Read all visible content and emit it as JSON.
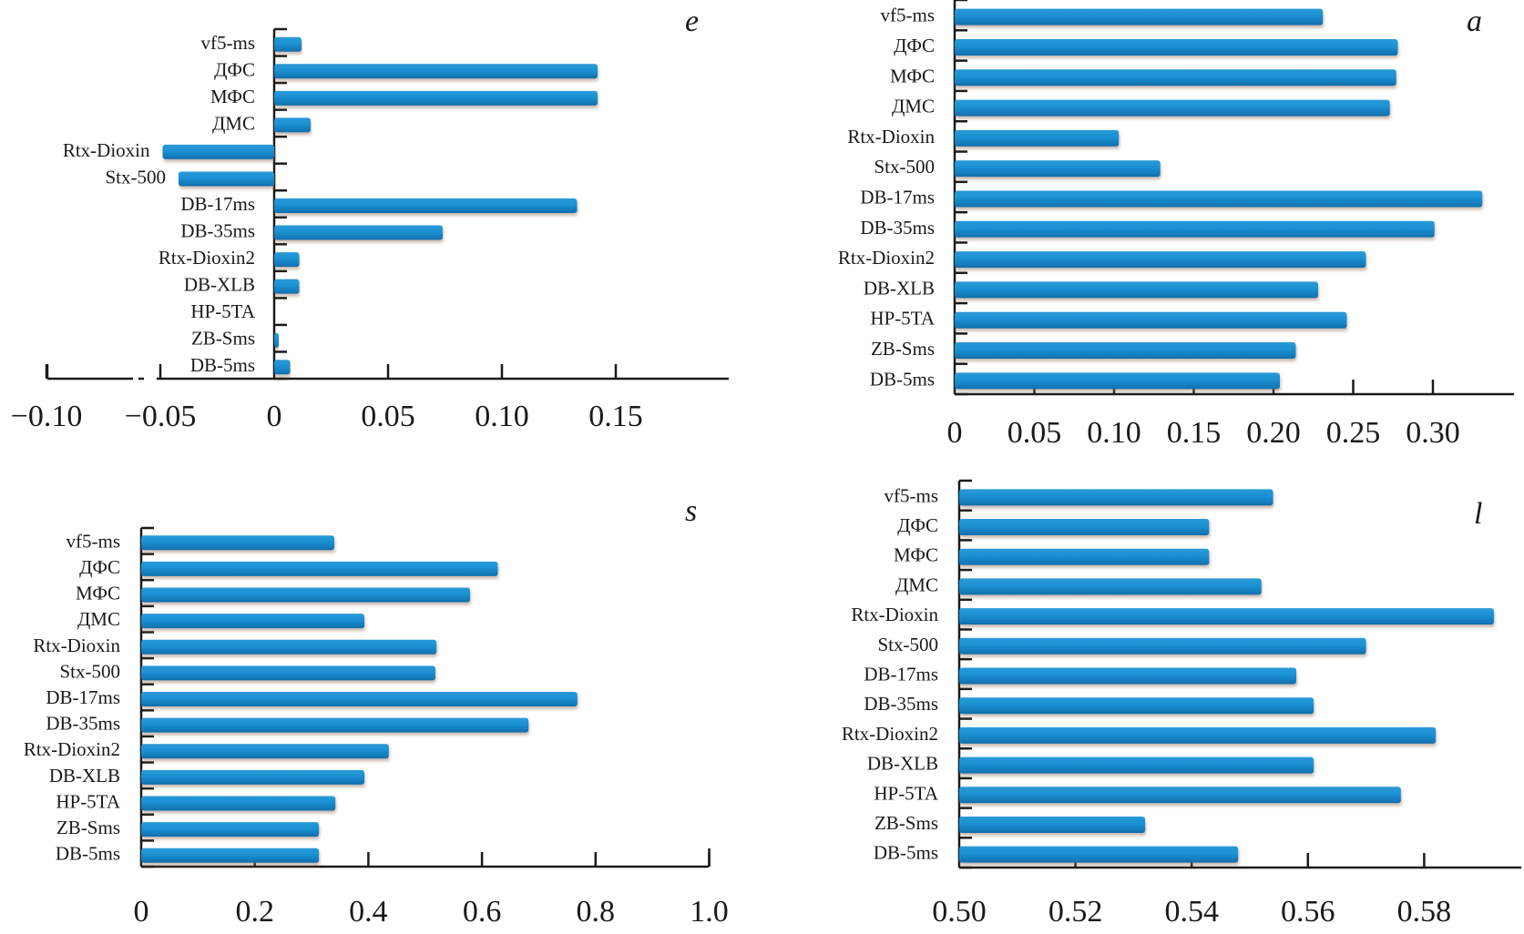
{
  "colors": {
    "bar": "#1b90d2",
    "bar_dark": "#0f6fae",
    "axis": "#1a1a1a"
  },
  "chart_data": [
    {
      "id": "e",
      "type": "bar",
      "orientation": "horizontal",
      "panel_letter": "e",
      "title": "",
      "xlabel": "",
      "ylabel": "",
      "categories": [
        "vf5-ms",
        "ДФС",
        "МФС",
        "ДМС",
        "Rtx-Dioxin",
        "Stx-500",
        "DB-17ms",
        "DB-35ms",
        "Rtx-Dioxin2",
        "DB-XLB",
        "HP-5TA",
        "ZB-Sms",
        "DB-5ms"
      ],
      "values": [
        0.012,
        0.142,
        0.142,
        0.016,
        -0.049,
        -0.042,
        0.133,
        0.074,
        0.011,
        0.011,
        0.0,
        0.002,
        0.007
      ],
      "xticks": [
        -0.1,
        -0.05,
        0,
        0.05,
        0.1,
        0.15
      ],
      "xtick_labels": [
        "−0.10",
        "−0.05",
        "0",
        "0.05",
        "0.10",
        "0.15"
      ],
      "xlim": [
        -0.1,
        0.2
      ],
      "axis_break": "between −0.10 and −0.05",
      "grid": false,
      "legend": "none"
    },
    {
      "id": "a",
      "type": "bar",
      "orientation": "horizontal",
      "panel_letter": "a",
      "title": "",
      "xlabel": "",
      "ylabel": "",
      "categories": [
        "vf5-ms",
        "ДФС",
        "МФС",
        "ДМС",
        "Rtx-Dioxin",
        "Stx-500",
        "DB-17ms",
        "DB-35ms",
        "Rtx-Dioxin2",
        "DB-XLB",
        "HP-5TA",
        "ZB-Sms",
        "DB-5ms"
      ],
      "values": [
        0.231,
        0.278,
        0.277,
        0.273,
        0.103,
        0.129,
        0.331,
        0.301,
        0.258,
        0.228,
        0.246,
        0.214,
        0.204
      ],
      "xticks": [
        0,
        0.05,
        0.1,
        0.15,
        0.2,
        0.25,
        0.3
      ],
      "xtick_labels": [
        "0",
        "0.05",
        "0.10",
        "0.15",
        "0.20",
        "0.25",
        "0.30"
      ],
      "xlim": [
        0,
        0.35
      ],
      "grid": false,
      "legend": "none"
    },
    {
      "id": "s",
      "type": "bar",
      "orientation": "horizontal",
      "panel_letter": "s",
      "title": "",
      "xlabel": "",
      "ylabel": "",
      "categories": [
        "vf5-ms",
        "ДФС",
        "МФС",
        "ДМС",
        "Rtx-Dioxin",
        "Stx-500",
        "DB-17ms",
        "DB-35ms",
        "Rtx-Dioxin2",
        "DB-XLB",
        "HP-5TA",
        "ZB-Sms",
        "DB-5ms"
      ],
      "values": [
        0.34,
        0.628,
        0.579,
        0.393,
        0.52,
        0.518,
        0.768,
        0.682,
        0.436,
        0.393,
        0.342,
        0.313,
        0.313
      ],
      "xticks": [
        0,
        0.2,
        0.4,
        0.6,
        0.8,
        1.0
      ],
      "xtick_labels": [
        "0",
        "0.2",
        "0.4",
        "0.6",
        "0.8",
        "1.0"
      ],
      "xlim": [
        0,
        1.0
      ],
      "grid": false,
      "legend": "none"
    },
    {
      "id": "l",
      "type": "bar",
      "orientation": "horizontal",
      "panel_letter": "l",
      "title": "",
      "xlabel": "",
      "ylabel": "",
      "categories": [
        "vf5-ms",
        "ДФС",
        "МФС",
        "ДМС",
        "Rtx-Dioxin",
        "Stx-500",
        "DB-17ms",
        "DB-35ms",
        "Rtx-Dioxin2",
        "DB-XLB",
        "HP-5TA",
        "ZB-Sms",
        "DB-5ms"
      ],
      "values": [
        0.554,
        0.543,
        0.543,
        0.552,
        0.592,
        0.57,
        0.558,
        0.561,
        0.582,
        0.561,
        0.576,
        0.532,
        0.548
      ],
      "xticks": [
        0.5,
        0.52,
        0.54,
        0.56,
        0.58
      ],
      "xtick_labels": [
        "0.50",
        "0.52",
        "0.54",
        "0.56",
        "0.58"
      ],
      "xlim": [
        0.5,
        0.595
      ],
      "grid": false,
      "legend": "none"
    }
  ]
}
